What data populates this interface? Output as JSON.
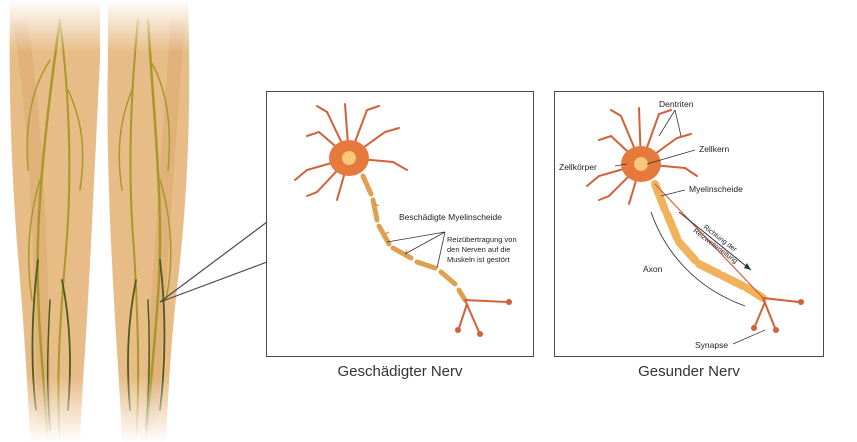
{
  "colors": {
    "skin": "#e8bc86",
    "skin_shadow": "#d9a56e",
    "nerve": "#a8982a",
    "nerve_dark": "#4f5a1e",
    "cell": "#e57a3c",
    "cell_center": "#f7c77c",
    "dendrite": "#d2603a",
    "myelin": "#f0b25c",
    "frame": "#4a4a4a"
  },
  "damaged_panel": {
    "caption": "Geschädigter Nerv",
    "label_myelin": "Beschädigte Myelinscheide",
    "label_transmission_lines": [
      "Reizübertragung von",
      "den Nerven auf die",
      "Muskeln ist gestört"
    ]
  },
  "healthy_panel": {
    "caption": "Gesunder Nerv",
    "label_dendrites": "Dentriten",
    "label_nucleus": "Zellkern",
    "label_cell_body": "Zellkörper",
    "label_myelin": "Myelinscheide",
    "label_direction_lines": [
      "Richtung der",
      "Reizweiterleitung"
    ],
    "label_axon": "Axon",
    "label_synapse": "Synapse"
  }
}
